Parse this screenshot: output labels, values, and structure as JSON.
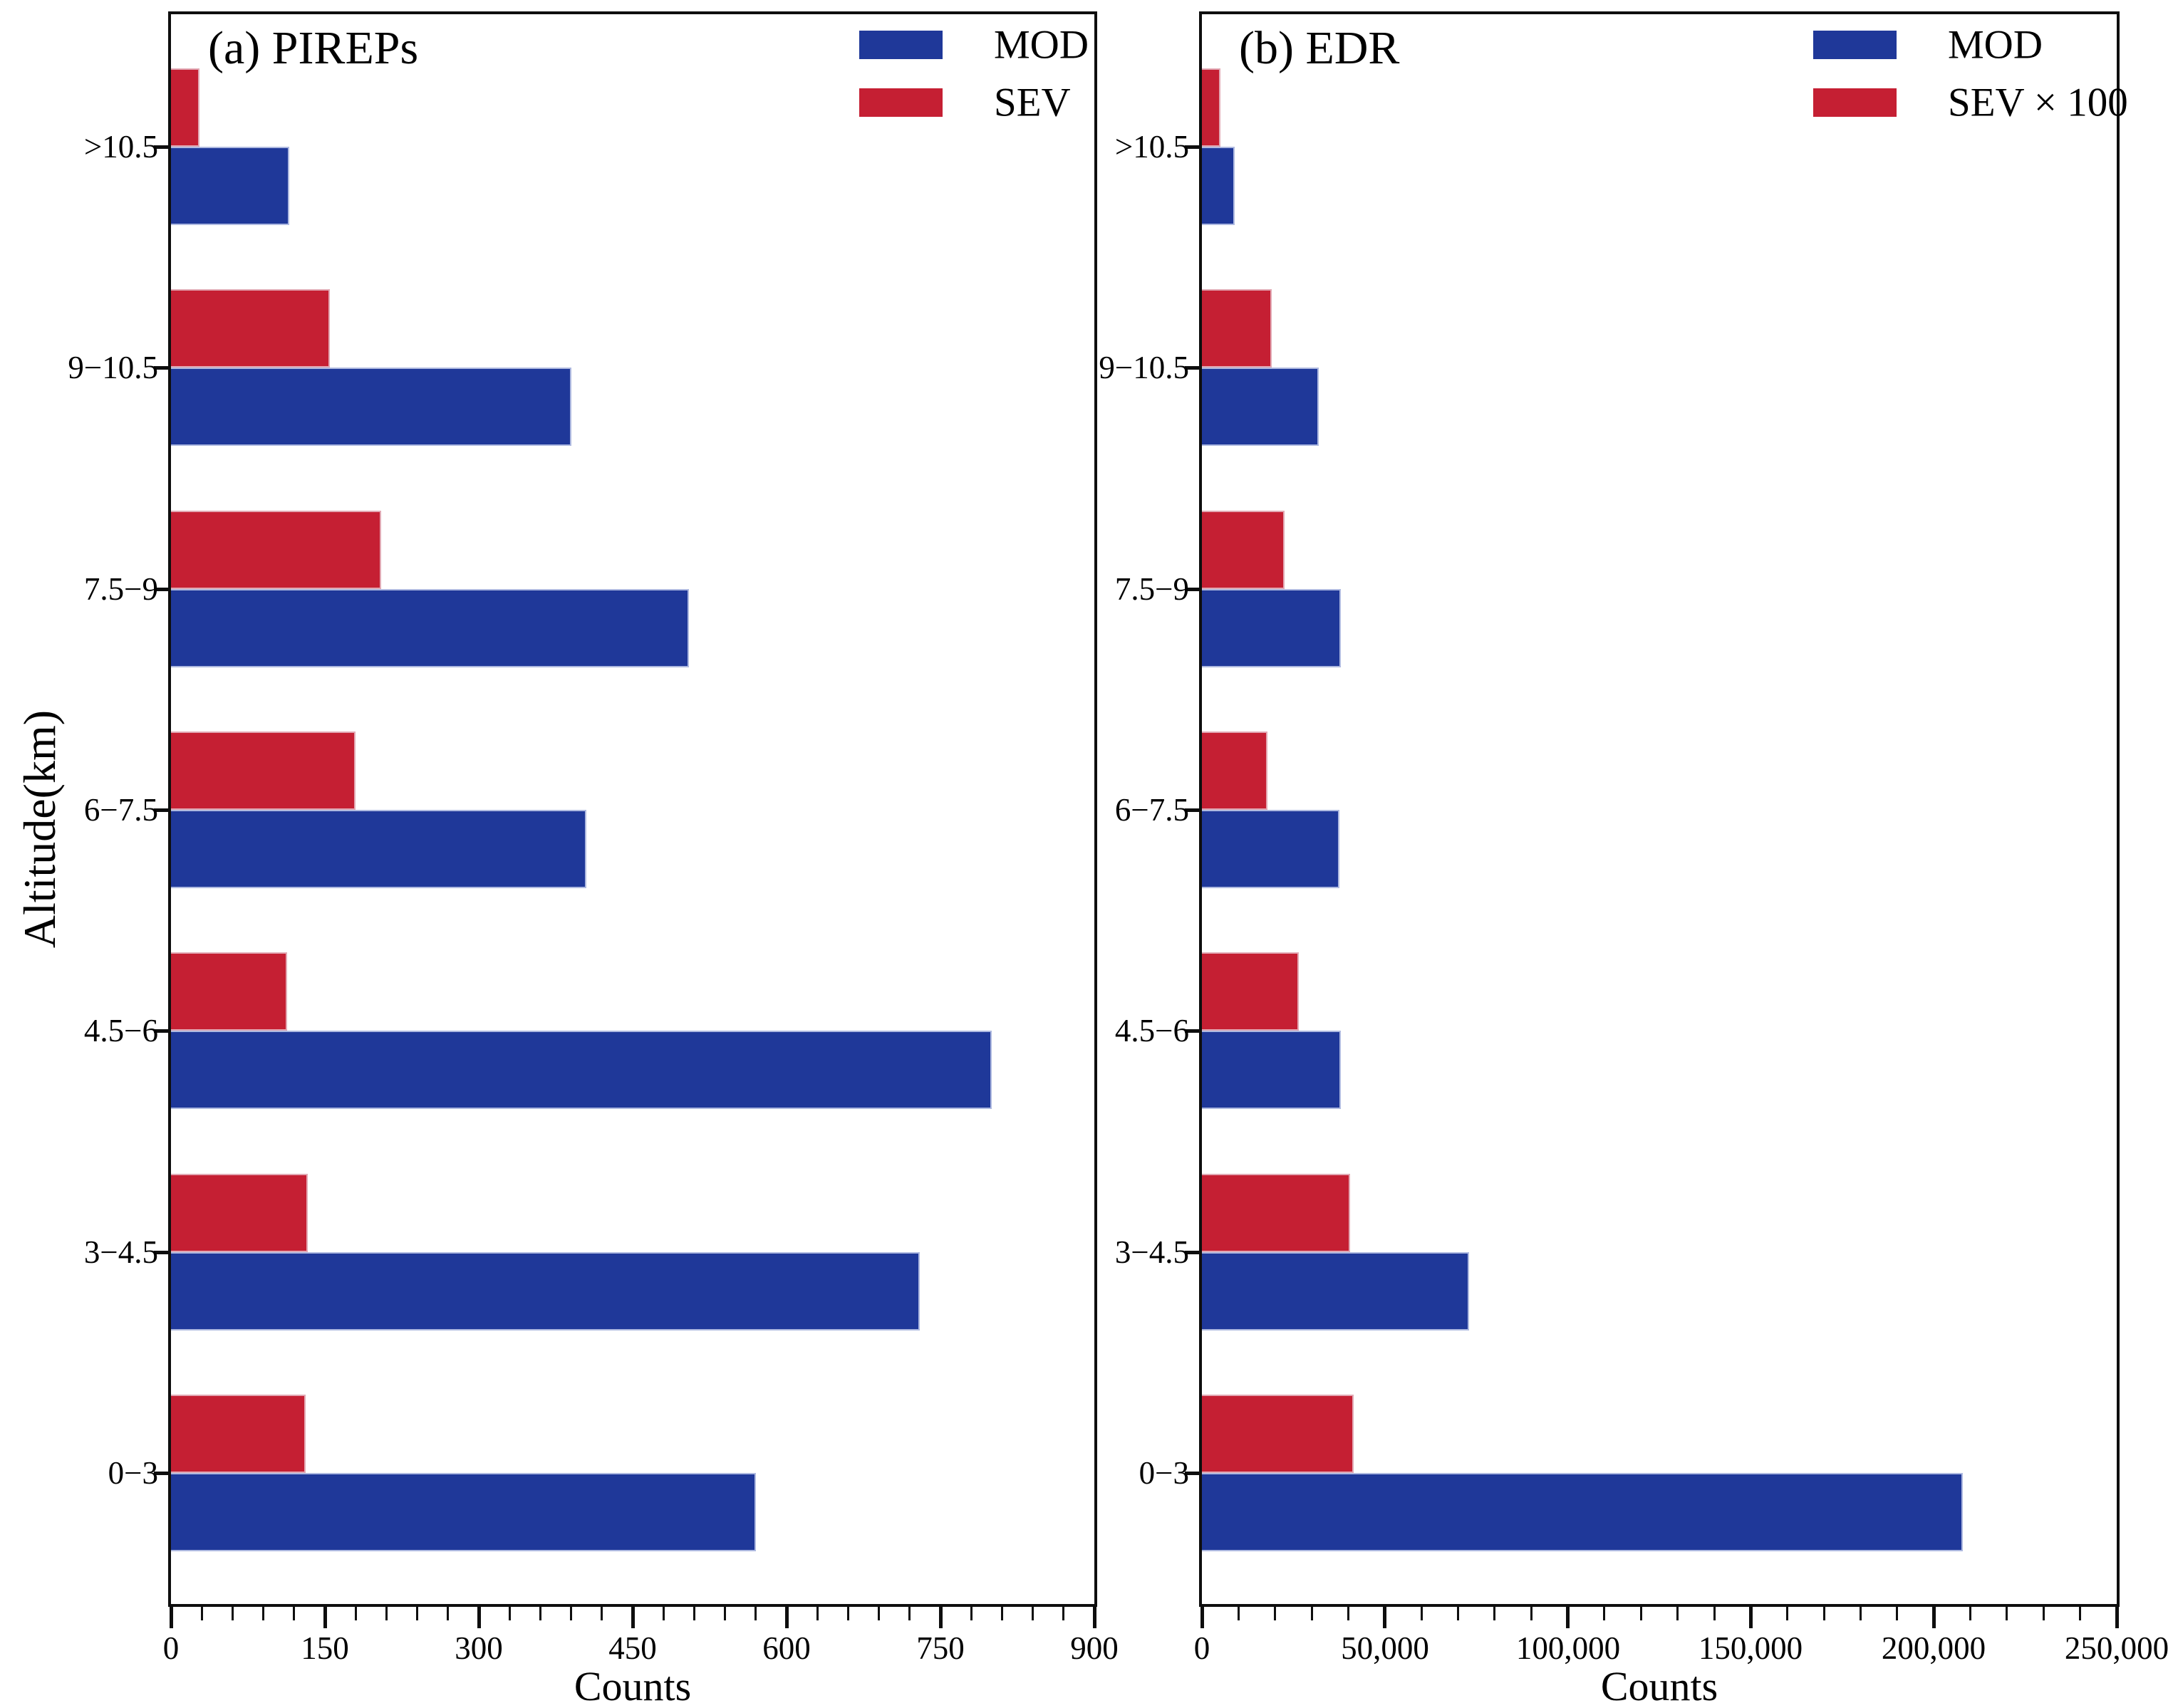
{
  "figure": {
    "x_axis_label": "Counts",
    "y_axis_label": "Altitude(km)"
  },
  "chart_data": [
    {
      "type": "bar",
      "orientation": "horizontal",
      "title": "(a) PIREPs",
      "categories_top_to_bottom": [
        ">10.5",
        "9−10.5",
        "7.5−9",
        "6−7.5",
        "4.5−6",
        "3−4.5",
        "0−3"
      ],
      "series": [
        {
          "name": "MOD",
          "color": "#1f3899",
          "values": [
            115,
            390,
            505,
            405,
            800,
            730,
            570
          ]
        },
        {
          "name": "SEV",
          "color": "#c51f33",
          "values": [
            28,
            155,
            205,
            180,
            113,
            133,
            131
          ]
        }
      ],
      "group_order_top_to_bottom": [
        "SEV",
        "MOD"
      ],
      "xlabel": "Counts",
      "ylabel": "Altitude(km)",
      "xlim": [
        0,
        900
      ],
      "x_tick_values": [
        0,
        150,
        300,
        450,
        600,
        750,
        900
      ],
      "x_tick_labels": [
        "0",
        "150",
        "300",
        "450",
        "600",
        "750",
        "900"
      ],
      "x_minor_step": 30,
      "grid": false,
      "legend_position": "upper right"
    },
    {
      "type": "bar",
      "orientation": "horizontal",
      "title": "(b) EDR",
      "categories_top_to_bottom": [
        ">10.5",
        "9−10.5",
        "7.5−9",
        "6−7.5",
        "4.5−6",
        "3−4.5",
        "0−3"
      ],
      "series": [
        {
          "name": "MOD",
          "color": "#1f3899",
          "values": [
            9000,
            32000,
            38000,
            37500,
            38000,
            73000,
            208000
          ]
        },
        {
          "name": "SEV × 100",
          "color": "#c51f33",
          "values": [
            5000,
            19000,
            22500,
            18000,
            26500,
            40500,
            41500
          ]
        }
      ],
      "group_order_top_to_bottom": [
        "SEV",
        "MOD"
      ],
      "xlabel": "Counts",
      "ylabel": "Altitude(km)",
      "xlim": [
        0,
        250000
      ],
      "x_tick_values": [
        0,
        50000,
        100000,
        150000,
        200000,
        250000
      ],
      "x_tick_labels": [
        "0",
        "50,000",
        "100,000",
        "150,000",
        "200,000",
        "250,000"
      ],
      "x_minor_step": 10000,
      "grid": false,
      "legend_position": "upper right"
    }
  ]
}
